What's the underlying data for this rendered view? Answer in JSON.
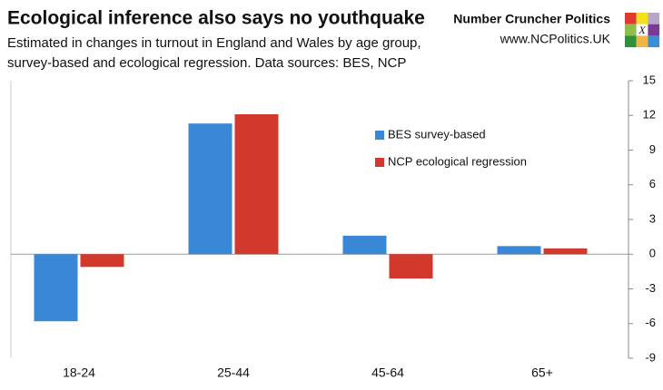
{
  "chart_data": {
    "type": "bar",
    "title": "Ecological inference also says no youthquake",
    "subtitle": [
      "Estimated in changes in turnout in England and Wales by age group,",
      "survey-based and ecological regression. Data sources: BES, NCP"
    ],
    "brand": "Number Cruncher Politics",
    "url": "www.NCPolitics.UK",
    "logo_text": "X",
    "categories": [
      "18-24",
      "25-44",
      "45-64",
      "65+"
    ],
    "series": [
      {
        "name": "BES survey-based",
        "color": "#3a87d6",
        "values": [
          -5.8,
          11.3,
          1.6,
          0.7
        ]
      },
      {
        "name": "NCP ecological regression",
        "color": "#d2382c",
        "values": [
          -1.1,
          12.1,
          -2.1,
          0.5
        ]
      }
    ],
    "ylim": [
      -9,
      15
    ],
    "yticks": [
      -9,
      -6,
      -3,
      0,
      3,
      6,
      9,
      12,
      15
    ],
    "y_axis_side": "right",
    "grid": false
  }
}
